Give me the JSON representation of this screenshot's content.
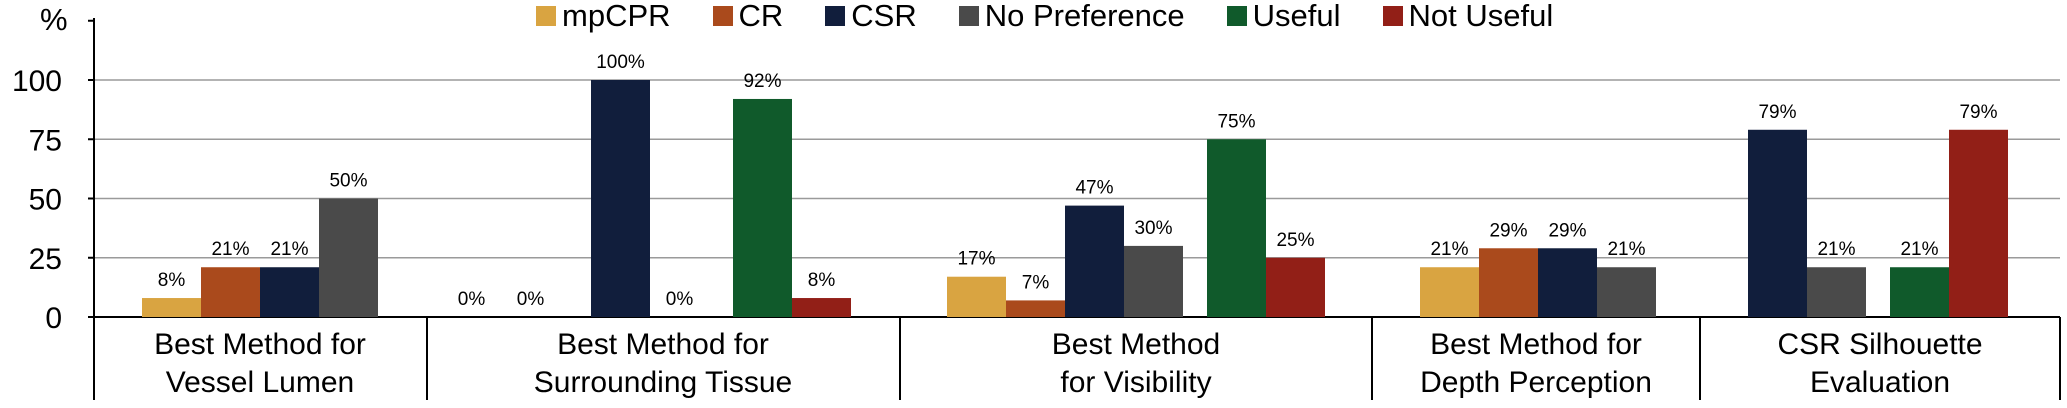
{
  "chart_data": {
    "type": "bar",
    "ylabel": "%",
    "ylim": [
      0,
      125
    ],
    "yticks": [
      "0",
      "25",
      "50",
      "75",
      "100"
    ],
    "grid": true,
    "legend_position": "top",
    "legend": [
      {
        "name": "mpCPR",
        "color": "#d9a441"
      },
      {
        "name": "CR",
        "color": "#aa4a1c"
      },
      {
        "name": "CSR",
        "color": "#111e3c"
      },
      {
        "name": "No Preference",
        "color": "#4a4a4a"
      },
      {
        "name": "Useful",
        "color": "#105a2b"
      },
      {
        "name": "Not Useful",
        "color": "#921f17"
      }
    ],
    "groups": [
      {
        "label_lines": [
          "Best Method for",
          "Vessel Lumen"
        ],
        "bars": [
          {
            "series": "mpCPR",
            "value": 8,
            "label": "8%"
          },
          {
            "series": "CR",
            "value": 21,
            "label": "21%"
          },
          {
            "series": "CSR",
            "value": 21,
            "label": "21%"
          },
          {
            "series": "No Preference",
            "value": 50,
            "label": "50%"
          }
        ]
      },
      {
        "label_lines": [
          "Best Method for",
          "Surrounding Tissue"
        ],
        "bars": [
          {
            "series": "mpCPR",
            "value": 0,
            "label": "0%"
          },
          {
            "series": "CR",
            "value": 0,
            "label": "0%"
          },
          {
            "series": "CSR",
            "value": 100,
            "label": "100%"
          },
          {
            "series": "No Preference",
            "value": 0,
            "label": "0%"
          },
          {
            "series": "Useful",
            "value": 92,
            "label": "92%"
          },
          {
            "series": "Not Useful",
            "value": 8,
            "label": "8%"
          }
        ]
      },
      {
        "label_lines": [
          "Best Method",
          "for Visibility"
        ],
        "bars": [
          {
            "series": "mpCPR",
            "value": 17,
            "label": "17%"
          },
          {
            "series": "CR",
            "value": 7,
            "label": "7%"
          },
          {
            "series": "CSR",
            "value": 47,
            "label": "47%"
          },
          {
            "series": "No Preference",
            "value": 30,
            "label": "30%"
          },
          {
            "series": "Useful",
            "value": 75,
            "label": "75%"
          },
          {
            "series": "Not Useful",
            "value": 25,
            "label": "25%"
          }
        ]
      },
      {
        "label_lines": [
          "Best Method for",
          "Depth Perception"
        ],
        "bars": [
          {
            "series": "mpCPR",
            "value": 21,
            "label": "21%"
          },
          {
            "series": "CR",
            "value": 29,
            "label": "29%"
          },
          {
            "series": "CSR",
            "value": 29,
            "label": "29%"
          },
          {
            "series": "No Preference",
            "value": 21,
            "label": "21%"
          }
        ]
      },
      {
        "label_lines": [
          "CSR Silhouette",
          "Evaluation"
        ],
        "bars": [
          {
            "series": "CSR",
            "value": 79,
            "label": "79%"
          },
          {
            "series": "No Preference",
            "value": 21,
            "label": "21%"
          },
          {
            "series": "Useful",
            "value": 21,
            "label": "21%"
          },
          {
            "series": "Not Useful",
            "value": 79,
            "label": "79%"
          }
        ]
      }
    ]
  }
}
